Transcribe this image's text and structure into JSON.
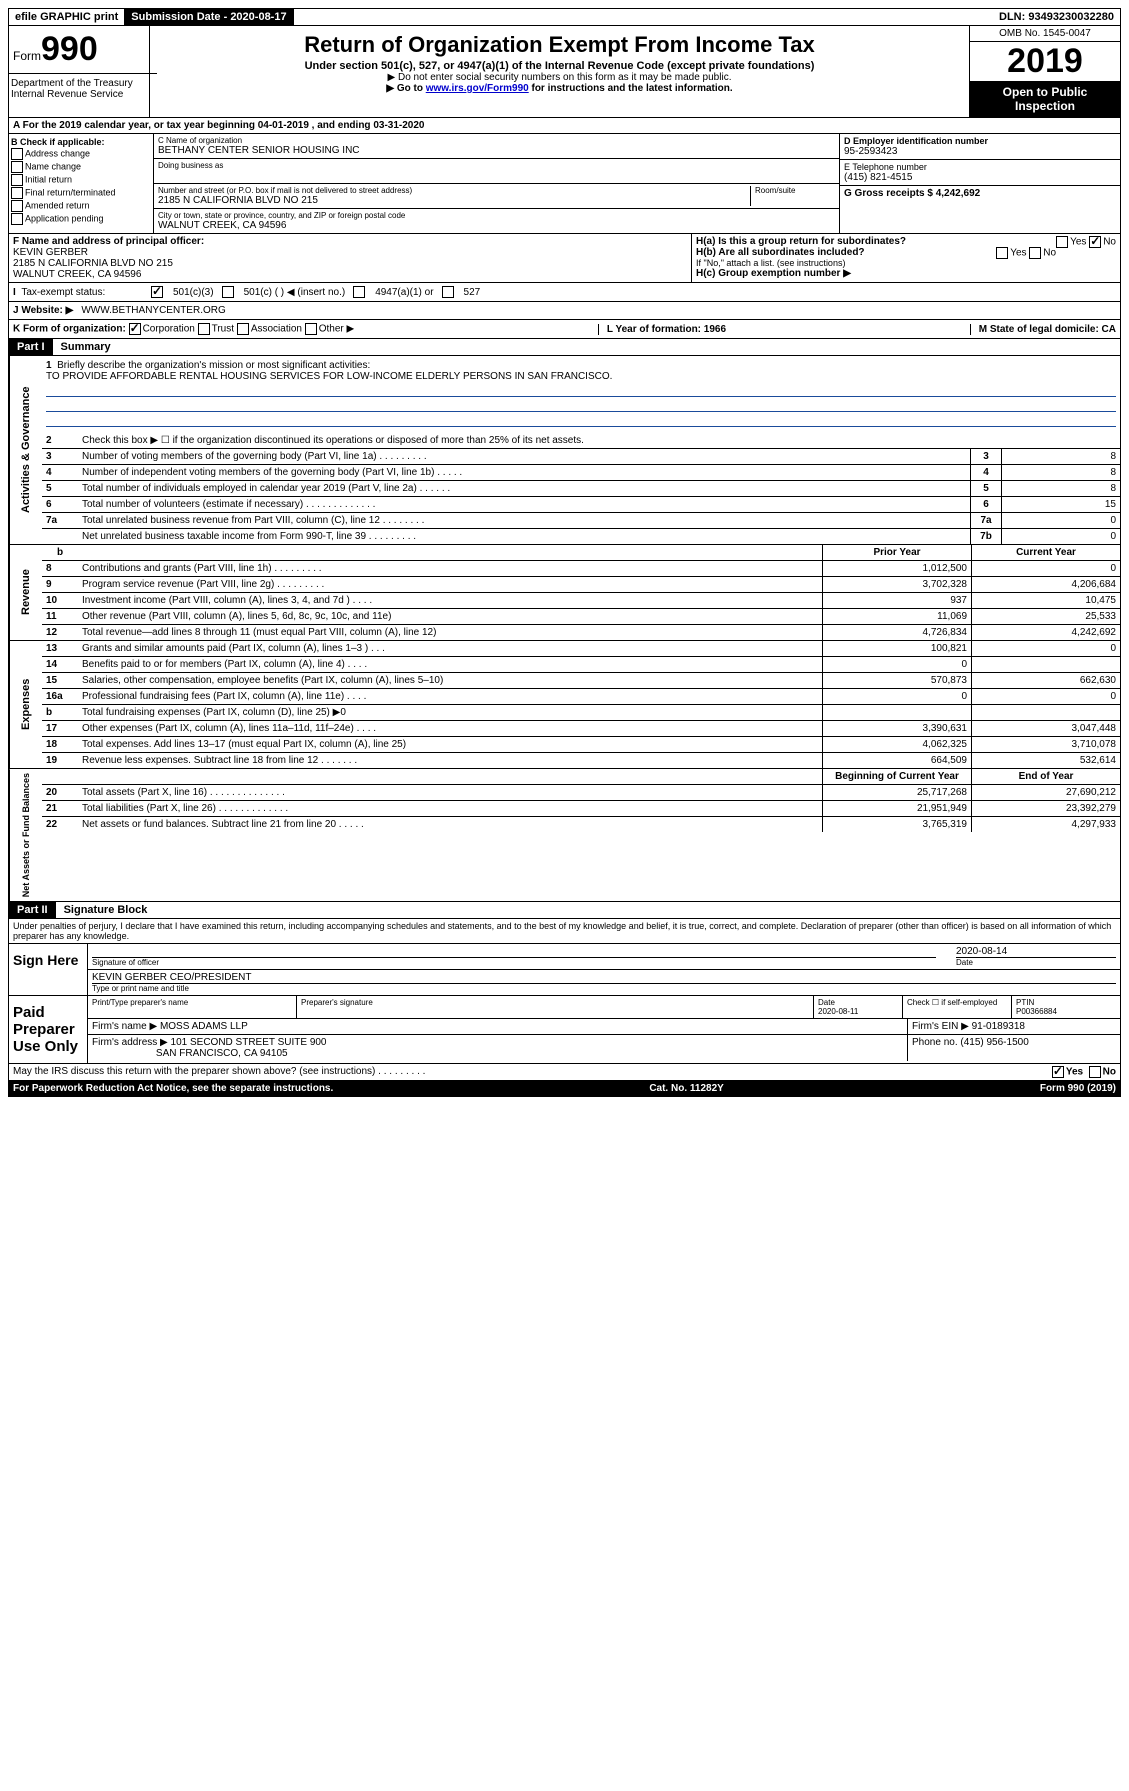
{
  "topbar": {
    "efile": "efile GRAPHIC print",
    "submission_label": "Submission Date - 2020-08-17",
    "dln": "DLN: 93493230032280"
  },
  "header": {
    "form_word": "Form",
    "form_no": "990",
    "title": "Return of Organization Exempt From Income Tax",
    "subtitle": "Under section 501(c), 527, or 4947(a)(1) of the Internal Revenue Code (except private foundations)",
    "line1": "▶ Do not enter social security numbers on this form as it may be made public.",
    "line2_pre": "▶ Go to ",
    "line2_link": "www.irs.gov/Form990",
    "line2_post": " for instructions and the latest information.",
    "omb": "OMB No. 1545-0047",
    "year": "2019",
    "open_public": "Open to Public Inspection",
    "dept1": "Department of the Treasury",
    "dept2": "Internal Revenue Service"
  },
  "lineA": "A   For the 2019 calendar year, or tax year beginning 04-01-2019    , and ending 03-31-2020",
  "checks": {
    "b_label": "B Check if applicable:",
    "address": "Address change",
    "name": "Name change",
    "initial": "Initial return",
    "final": "Final return/terminated",
    "amended": "Amended return",
    "application": "Application pending"
  },
  "orgblock": {
    "c_label": "C Name of organization",
    "org_name": "BETHANY CENTER SENIOR HOUSING INC",
    "dba_label": "Doing business as",
    "addr_label": "Number and street (or P.O. box if mail is not delivered to street address)",
    "room_label": "Room/suite",
    "addr": "2185 N CALIFORNIA BLVD NO 215",
    "city_label": "City or town, state or province, country, and ZIP or foreign postal code",
    "city": "WALNUT CREEK, CA  94596"
  },
  "rightblock": {
    "d_label": "D Employer identification number",
    "ein": "95-2593423",
    "e_label": "E Telephone number",
    "phone": "(415) 821-4515",
    "g_label": "G Gross receipts $ 4,242,692"
  },
  "principal": {
    "f_label": "F  Name and address of principal officer:",
    "name": "KEVIN GERBER",
    "addr1": "2185 N CALIFORNIA BLVD NO 215",
    "addr2": "WALNUT CREEK, CA  94596"
  },
  "hblock": {
    "ha": "H(a)  Is this a group return for subordinates?",
    "hb": "H(b)  Are all subordinates included?",
    "hb_note": "If \"No,\" attach a list. (see instructions)",
    "hc": "H(c)  Group exemption number ▶",
    "yes": "Yes",
    "no": "No"
  },
  "taxexempt": {
    "label": "Tax-exempt status:",
    "c3": "501(c)(3)",
    "c": "501(c) (   ) ◀ (insert no.)",
    "a1": "4947(a)(1) or",
    "s527": "527"
  },
  "website": {
    "label": "J   Website: ▶",
    "value": "WWW.BETHANYCENTER.ORG"
  },
  "korg": {
    "k_label": "K Form of organization:",
    "corp": "Corporation",
    "trust": "Trust",
    "assoc": "Association",
    "other": "Other ▶",
    "l_label": "L Year of formation: 1966",
    "m_label": "M State of legal domicile: CA"
  },
  "part1": {
    "header": "Part I",
    "title": "Summary"
  },
  "governance": {
    "side": "Activities & Governance",
    "l1": "Briefly describe the organization's mission or most significant activities:",
    "mission": "TO PROVIDE AFFORDABLE RENTAL HOUSING SERVICES FOR LOW-INCOME ELDERLY PERSONS IN SAN FRANCISCO.",
    "l2": "Check this box ▶ ☐  if the organization discontinued its operations or disposed of more than 25% of its net assets.",
    "l3": "Number of voting members of the governing body (Part VI, line 1a)    .    .    .    .    .    .    .    .    .",
    "l3v": "8",
    "l4": "Number of independent voting members of the governing body (Part VI, line 1b)    .    .    .    .    .",
    "l4v": "8",
    "l5": "Total number of individuals employed in calendar year 2019 (Part V, line 2a)    .    .    .    .    .    .",
    "l5v": "8",
    "l6": "Total number of volunteers (estimate if necessary)    .    .    .    .    .    .    .    .    .    .    .    .    .",
    "l6v": "15",
    "l7a": "Total unrelated business revenue from Part VIII, column (C), line 12    .    .    .    .    .    .    .    .",
    "l7av": "0",
    "l7b": "Net unrelated business taxable income from Form 990-T, line 39    .    .    .    .    .    .    .    .    .",
    "l7bv": "0"
  },
  "finheader": {
    "prior": "Prior Year",
    "current": "Current Year"
  },
  "revenue": {
    "side": "Revenue",
    "rows": [
      {
        "n": "8",
        "d": "Contributions and grants (Part VIII, line 1h)    .    .    .    .    .    .    .    .    .",
        "p": "1,012,500",
        "c": "0"
      },
      {
        "n": "9",
        "d": "Program service revenue (Part VIII, line 2g)    .    .    .    .    .    .    .    .    .",
        "p": "3,702,328",
        "c": "4,206,684"
      },
      {
        "n": "10",
        "d": "Investment income (Part VIII, column (A), lines 3, 4, and 7d )    .    .    .    .",
        "p": "937",
        "c": "10,475"
      },
      {
        "n": "11",
        "d": "Other revenue (Part VIII, column (A), lines 5, 6d, 8c, 9c, 10c, and 11e)",
        "p": "11,069",
        "c": "25,533"
      },
      {
        "n": "12",
        "d": "Total revenue—add lines 8 through 11 (must equal Part VIII, column (A), line 12)",
        "p": "4,726,834",
        "c": "4,242,692"
      }
    ]
  },
  "expenses": {
    "side": "Expenses",
    "rows": [
      {
        "n": "13",
        "d": "Grants and similar amounts paid (Part IX, column (A), lines 1–3 )    .    .    .",
        "p": "100,821",
        "c": "0"
      },
      {
        "n": "14",
        "d": "Benefits paid to or for members (Part IX, column (A), line 4)    .    .    .    .",
        "p": "0",
        "c": ""
      },
      {
        "n": "15",
        "d": "Salaries, other compensation, employee benefits (Part IX, column (A), lines 5–10)",
        "p": "570,873",
        "c": "662,630"
      },
      {
        "n": "16a",
        "d": "Professional fundraising fees (Part IX, column (A), line 11e)    .    .    .    .",
        "p": "0",
        "c": "0"
      },
      {
        "n": "b",
        "d": "Total fundraising expenses (Part IX, column (D), line 25) ▶0",
        "p": "",
        "c": ""
      },
      {
        "n": "17",
        "d": "Other expenses (Part IX, column (A), lines 11a–11d, 11f–24e)    .    .    .    .",
        "p": "3,390,631",
        "c": "3,047,448"
      },
      {
        "n": "18",
        "d": "Total expenses. Add lines 13–17 (must equal Part IX, column (A), line 25)",
        "p": "4,062,325",
        "c": "3,710,078"
      },
      {
        "n": "19",
        "d": "Revenue less expenses. Subtract line 18 from line 12    .    .    .    .    .    .    .",
        "p": "664,509",
        "c": "532,614"
      }
    ]
  },
  "netassets": {
    "side": "Net Assets or Fund Balances",
    "header_begin": "Beginning of Current Year",
    "header_end": "End of Year",
    "rows": [
      {
        "n": "20",
        "d": "Total assets (Part X, line 16)    .    .    .    .    .    .    .    .    .    .    .    .    .    .",
        "p": "25,717,268",
        "c": "27,690,212"
      },
      {
        "n": "21",
        "d": "Total liabilities (Part X, line 26)    .    .    .    .    .    .    .    .    .    .    .    .    .",
        "p": "21,951,949",
        "c": "23,392,279"
      },
      {
        "n": "22",
        "d": "Net assets or fund balances. Subtract line 21 from line 20    .    .    .    .    .",
        "p": "3,765,319",
        "c": "4,297,933"
      }
    ]
  },
  "part2": {
    "header": "Part II",
    "title": "Signature Block"
  },
  "declaration": "Under penalties of perjury, I declare that I have examined this return, including accompanying schedules and statements, and to the best of my knowledge and belief, it is true, correct, and complete. Declaration of preparer (other than officer) is based on all information of which preparer has any knowledge.",
  "sign": {
    "label": "Sign Here",
    "sig_officer": "Signature of officer",
    "date": "2020-08-14",
    "date_label": "Date",
    "name": "KEVIN GERBER CEO/PRESIDENT",
    "name_label": "Type or print name and title"
  },
  "paid": {
    "label": "Paid Preparer Use Only",
    "h1": "Print/Type preparer's name",
    "h2": "Preparer's signature",
    "h3": "Date",
    "h4": "Check ☐ if self-employed",
    "h5": "PTIN",
    "date": "2020-08-11",
    "ptin": "P00366884",
    "firm_label": "Firm's name    ▶",
    "firm": "MOSS ADAMS LLP",
    "ein_label": "Firm's EIN ▶ 91-0189318",
    "addr_label": "Firm's address ▶",
    "addr1": "101 SECOND STREET SUITE 900",
    "addr2": "SAN FRANCISCO, CA  94105",
    "phone_label": "Phone no. (415) 956-1500"
  },
  "irs_discuss": "May the IRS discuss this return with the preparer shown above? (see instructions)    .    .    .    .    .    .    .    .    .",
  "footer": {
    "left": "For Paperwork Reduction Act Notice, see the separate instructions.",
    "mid": "Cat. No. 11282Y",
    "right": "Form 990 (2019)"
  }
}
